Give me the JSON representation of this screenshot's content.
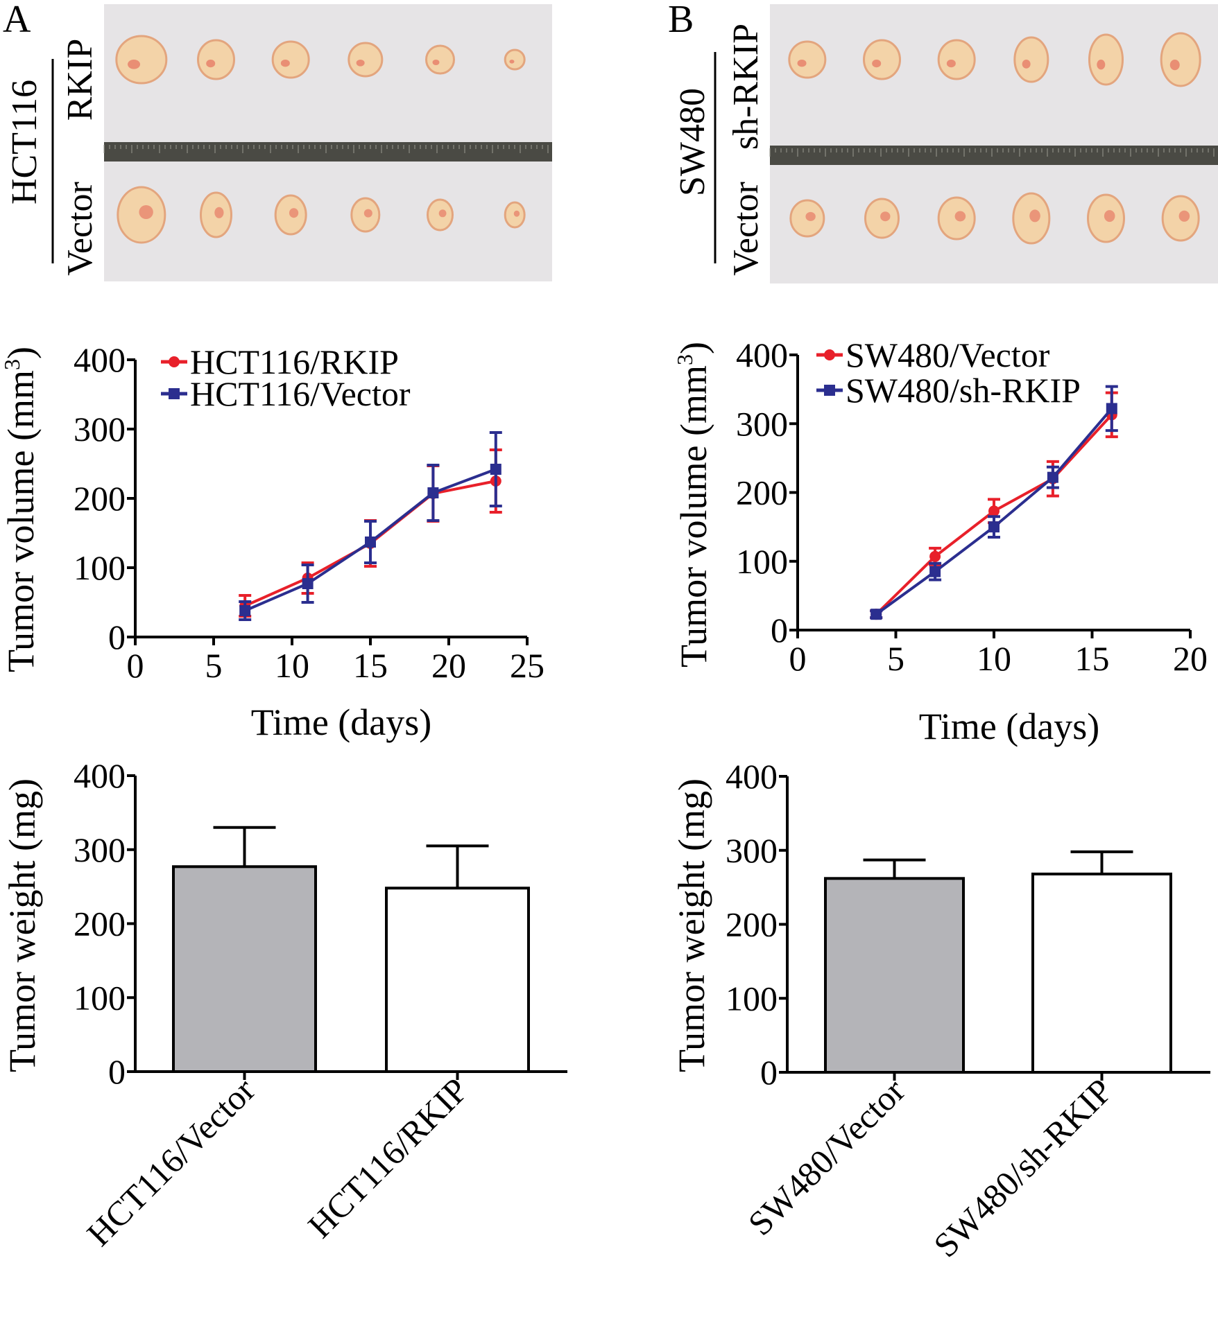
{
  "panels": {
    "A": {
      "letter": "A",
      "cell_line": "HCT116",
      "row_top": "RKIP",
      "row_bottom": "Vector"
    },
    "B": {
      "letter": "B",
      "cell_line": "SW480",
      "row_top": "sh-RKIP",
      "row_bottom": "Vector"
    }
  },
  "colors": {
    "red": "#e8202a",
    "blue": "#2b2e8f",
    "gray_bar": "#b4b4b8",
    "photo_bg": "#e6e4e6"
  },
  "chart_data": [
    {
      "id": "A_volume",
      "type": "line",
      "xlabel": "Time (days)",
      "ylabel": "Tumor volume (mm3)",
      "ylabel_main": "Tumor volume (mm",
      "ylabel_sup": "3",
      "ylabel_end": ")",
      "xlim": [
        0,
        25
      ],
      "ylim": [
        0,
        400
      ],
      "xticks": [
        0,
        5,
        10,
        15,
        20,
        25
      ],
      "yticks": [
        0,
        100,
        200,
        300,
        400
      ],
      "legend_position": "top-left",
      "series": [
        {
          "name": "HCT116/RKIP",
          "color": "#e8202a",
          "marker": "circle",
          "x": [
            7,
            11,
            15,
            19,
            23
          ],
          "y": [
            45,
            85,
            135,
            207,
            225
          ],
          "err": [
            15,
            22,
            33,
            40,
            45
          ]
        },
        {
          "name": "HCT116/Vector",
          "color": "#2b2e8f",
          "marker": "square",
          "x": [
            7,
            11,
            15,
            19,
            23
          ],
          "y": [
            38,
            77,
            137,
            208,
            242
          ],
          "err": [
            13,
            27,
            30,
            40,
            53
          ]
        }
      ]
    },
    {
      "id": "B_volume",
      "type": "line",
      "xlabel": "Time (days)",
      "ylabel": "Tumor volume (mm3)",
      "ylabel_main": "Tumor volume (mm",
      "ylabel_sup": "3",
      "ylabel_end": ")",
      "xlim": [
        0,
        20
      ],
      "ylim": [
        0,
        400
      ],
      "xticks": [
        0,
        5,
        10,
        15,
        20
      ],
      "yticks": [
        0,
        100,
        200,
        300,
        400
      ],
      "legend_position": "top-left",
      "series": [
        {
          "name": "SW480/Vector",
          "color": "#e8202a",
          "marker": "circle",
          "x": [
            4,
            7,
            10,
            13,
            16
          ],
          "y": [
            23,
            107,
            173,
            220,
            313
          ],
          "err": [
            5,
            12,
            17,
            25,
            32
          ]
        },
        {
          "name": "SW480/sh-RKIP",
          "color": "#2b2e8f",
          "marker": "square",
          "x": [
            4,
            7,
            10,
            13,
            16
          ],
          "y": [
            23,
            85,
            150,
            222,
            322
          ],
          "err": [
            5,
            12,
            15,
            15,
            32
          ]
        }
      ]
    },
    {
      "id": "A_weight",
      "type": "bar",
      "ylabel": "Tumor weight (mg)",
      "ylim": [
        0,
        400
      ],
      "yticks": [
        0,
        100,
        200,
        300,
        400
      ],
      "categories": [
        "HCT116/Vector",
        "HCT116/RKIP"
      ],
      "values": [
        277,
        248
      ],
      "err": [
        53,
        57
      ],
      "fills": [
        "#b4b4b8",
        "#ffffff"
      ]
    },
    {
      "id": "B_weight",
      "type": "bar",
      "ylabel": "Tumor weight (mg)",
      "ylim": [
        0,
        400
      ],
      "yticks": [
        0,
        100,
        200,
        300,
        400
      ],
      "categories": [
        "SW480/Vector",
        "SW480/sh-RKIP"
      ],
      "values": [
        262,
        268
      ],
      "err": [
        25,
        30
      ],
      "fills": [
        "#b4b4b8",
        "#ffffff"
      ]
    }
  ]
}
